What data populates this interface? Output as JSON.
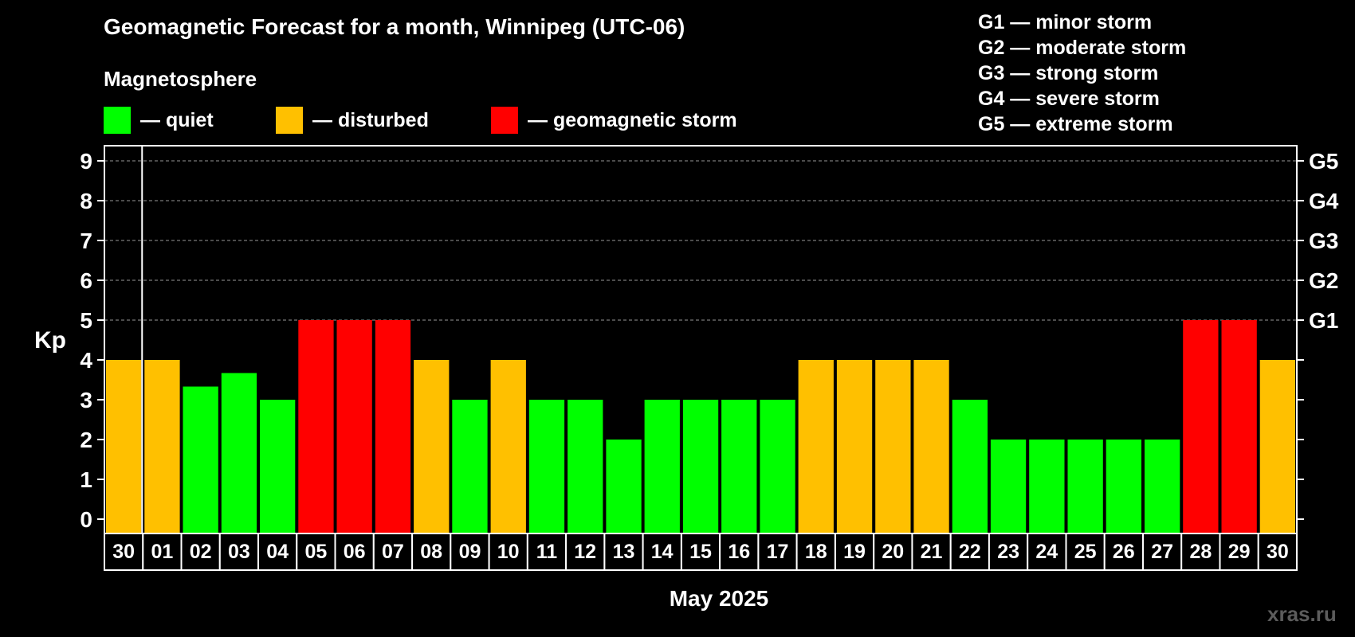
{
  "chart_data": {
    "type": "bar",
    "title": "Geomagnetic Forecast for a month, Winnipeg (UTC-06)",
    "subtitle": "Magnetosphere",
    "ylabel": "Kp",
    "xlabel": "May 2025",
    "ylim": [
      0,
      9
    ],
    "yticks": [
      "0",
      "1",
      "2",
      "3",
      "4",
      "5",
      "6",
      "7",
      "8",
      "9"
    ],
    "right_ticks": [
      {
        "value": 5,
        "label": "G1"
      },
      {
        "value": 6,
        "label": "G2"
      },
      {
        "value": 7,
        "label": "G3"
      },
      {
        "value": 8,
        "label": "G4"
      },
      {
        "value": 9,
        "label": "G5"
      }
    ],
    "categories": [
      "30",
      "01",
      "02",
      "03",
      "04",
      "05",
      "06",
      "07",
      "08",
      "09",
      "10",
      "11",
      "12",
      "13",
      "14",
      "15",
      "16",
      "17",
      "18",
      "19",
      "20",
      "21",
      "22",
      "23",
      "24",
      "25",
      "26",
      "27",
      "28",
      "29",
      "30"
    ],
    "values": [
      4,
      4,
      3.33,
      3.67,
      3,
      5,
      5,
      5,
      4,
      3,
      4,
      3,
      3,
      2,
      3,
      3,
      3,
      3,
      4,
      4,
      4,
      4,
      3,
      2,
      2,
      2,
      2,
      2,
      5,
      5,
      4
    ],
    "colors": {
      "quiet": "#00ff00",
      "disturbed": "#ffc000",
      "storm": "#ff0000",
      "grid": "#7a7a7a",
      "frame": "#ffffff"
    },
    "legend": [
      {
        "key": "quiet",
        "label": "— quiet"
      },
      {
        "key": "disturbed",
        "label": "— disturbed"
      },
      {
        "key": "storm",
        "label": "— geomagnetic storm"
      }
    ],
    "storm_scale": [
      "G1 — minor storm",
      "G2 — moderate storm",
      "G3 — strong storm",
      "G4 — severe storm",
      "G5 — extreme storm"
    ],
    "grid": true
  },
  "watermark": "xras.ru"
}
